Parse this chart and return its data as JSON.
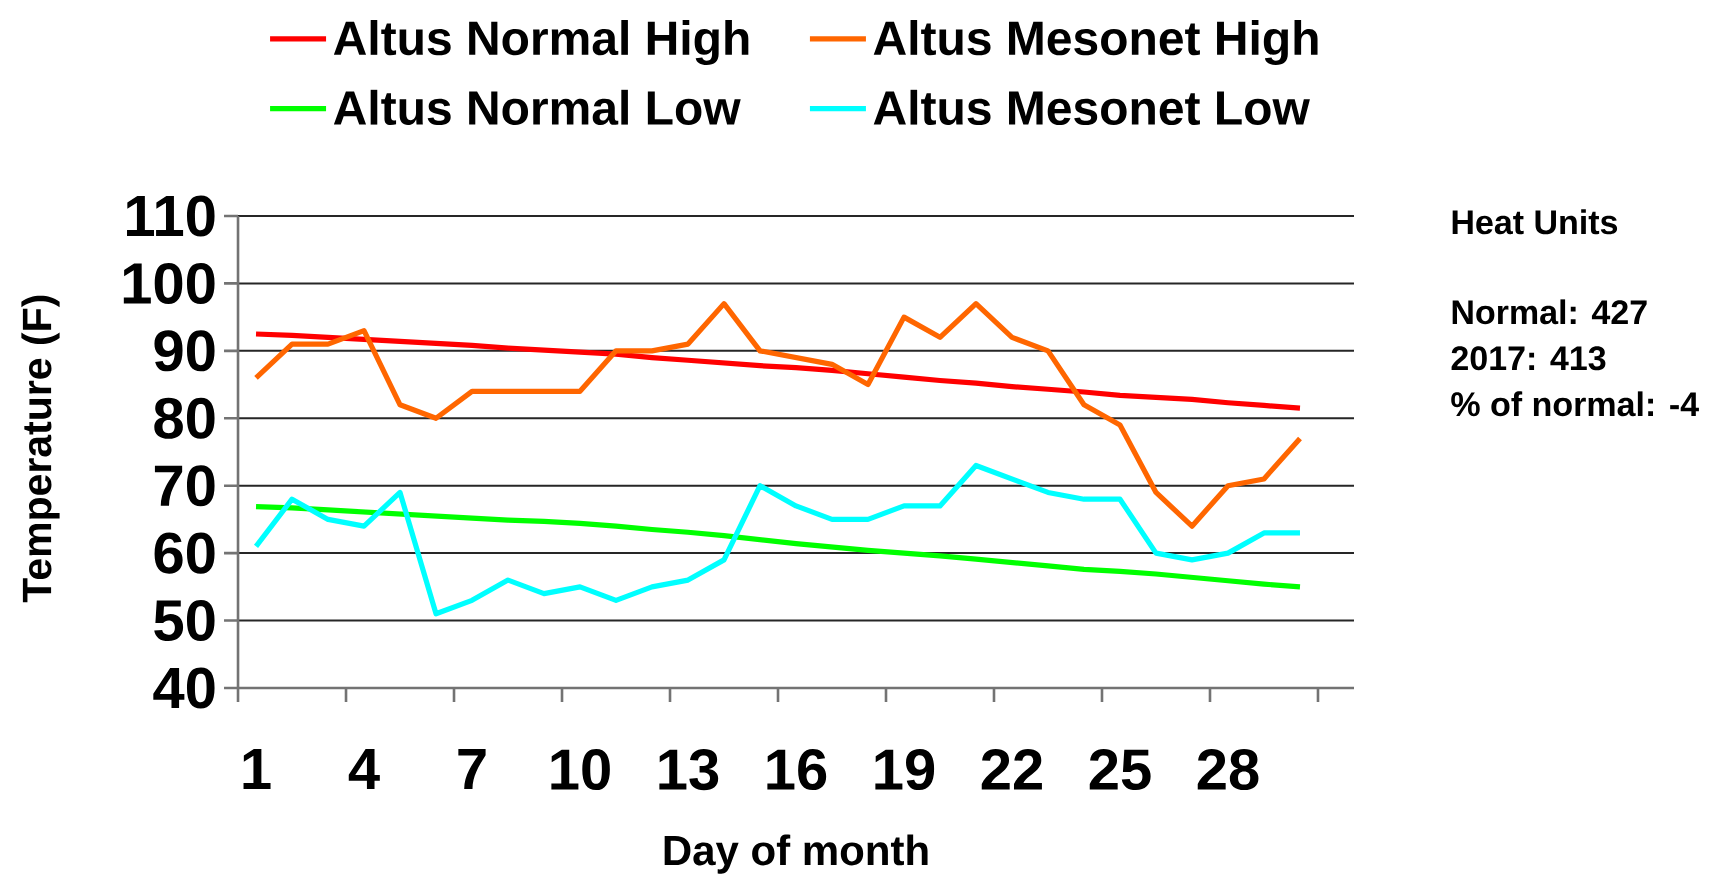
{
  "chart_data": {
    "type": "line",
    "xlabel": "Day of month",
    "ylabel": "Temperature (F)",
    "categories": [
      "1",
      null,
      null,
      "4",
      null,
      null,
      "7",
      null,
      null,
      "10",
      null,
      null,
      "13",
      null,
      null,
      "16",
      null,
      null,
      "19",
      null,
      null,
      "22",
      null,
      null,
      "25",
      null,
      null,
      "28",
      null,
      null,
      null
    ],
    "series": [
      {
        "name": "Altus Normal High",
        "color": "#ff0000",
        "values": [
          92.5,
          92.3,
          92.0,
          91.7,
          91.4,
          91.1,
          90.8,
          90.4,
          90.1,
          89.8,
          89.5,
          89.0,
          88.6,
          88.2,
          87.8,
          87.5,
          87.1,
          86.6,
          86.1,
          85.6,
          85.2,
          84.7,
          84.3,
          83.9,
          83.4,
          83.1,
          82.8,
          82.3,
          81.9,
          81.5,
          null
        ]
      },
      {
        "name": "Altus Mesonet High",
        "color": "#ff6600",
        "values": [
          86,
          91,
          91,
          93,
          82,
          80,
          84,
          84,
          84,
          84,
          90,
          90,
          91,
          97,
          90,
          89,
          88,
          85,
          95,
          92,
          97,
          92,
          90,
          82,
          79,
          69,
          64,
          70,
          71,
          77,
          null
        ]
      },
      {
        "name": "Altus Normal Low",
        "color": "#00ff00",
        "values": [
          66.9,
          66.7,
          66.4,
          66.1,
          65.8,
          65.5,
          65.2,
          64.9,
          64.7,
          64.4,
          64.0,
          63.5,
          63.1,
          62.6,
          62.0,
          61.4,
          60.9,
          60.4,
          60.0,
          59.6,
          59.1,
          58.6,
          58.1,
          57.6,
          57.3,
          56.9,
          56.4,
          55.9,
          55.4,
          55.0,
          null
        ]
      },
      {
        "name": "Altus Mesonet Low",
        "color": "#00ffff",
        "values": [
          61,
          68,
          65,
          64,
          69,
          51,
          53,
          56,
          54,
          55,
          53,
          55,
          56,
          59,
          70,
          67,
          65,
          65,
          67,
          67,
          73,
          71,
          69,
          68,
          68,
          60,
          59,
          60,
          63,
          63,
          null
        ]
      }
    ],
    "ylim": [
      40,
      110
    ],
    "yticks": [
      40,
      50,
      60,
      70,
      80,
      90,
      100,
      110
    ],
    "grid": "y",
    "legend": "top",
    "annotations": [
      "Heat Units",
      "Normal: 427",
      "2017: 413",
      "% of normal: -4"
    ]
  }
}
